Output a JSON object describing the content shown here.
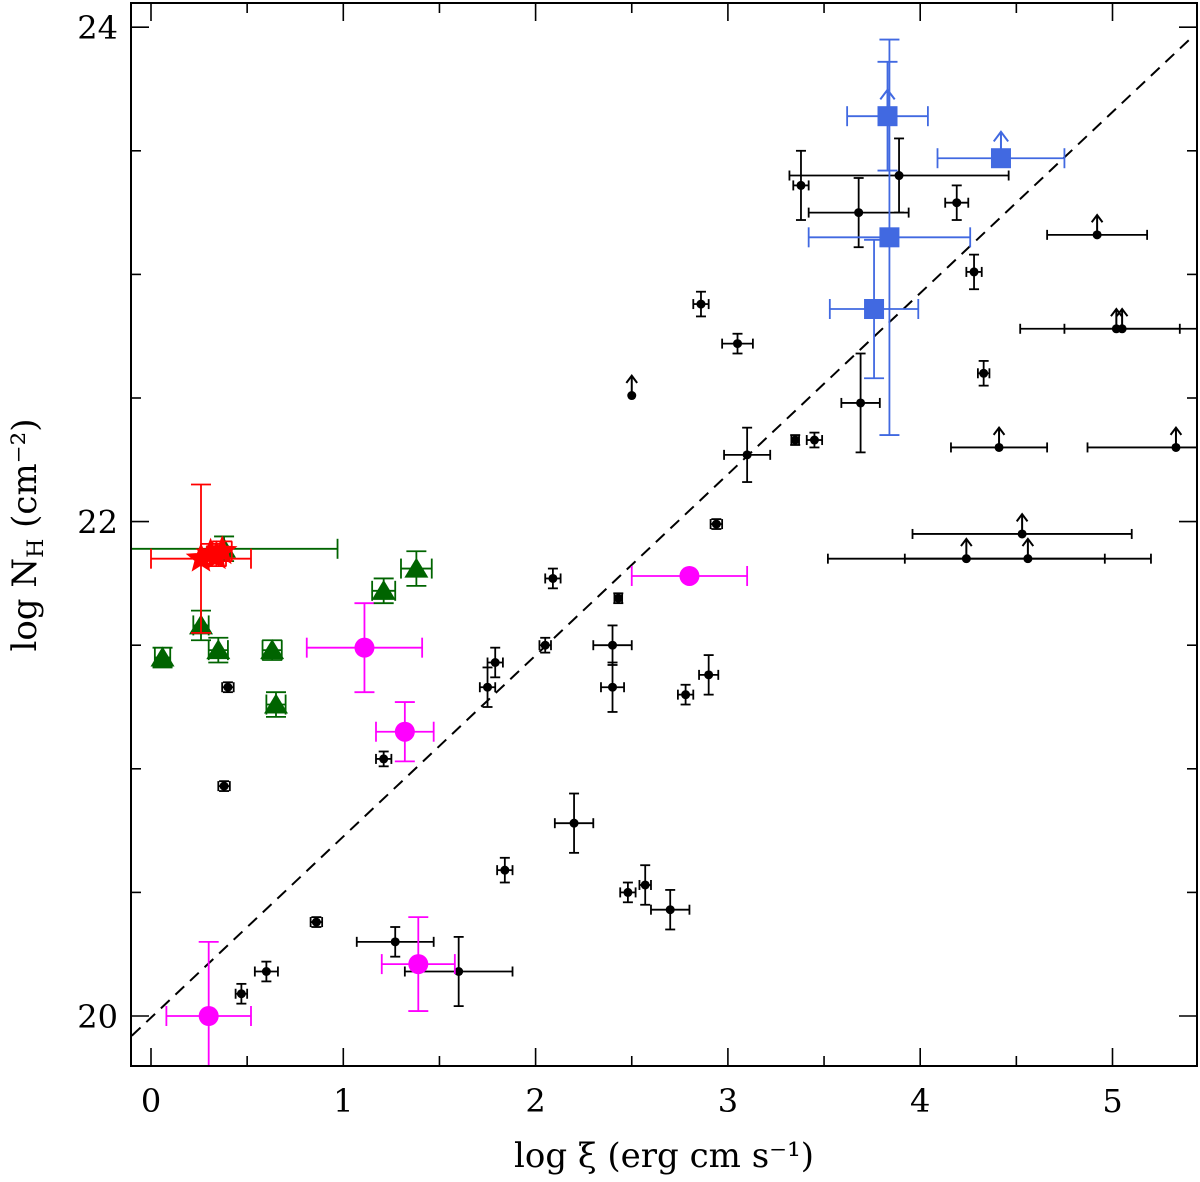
{
  "chart_data": {
    "type": "scatter",
    "xlabel": "log ξ (erg cm s⁻¹)",
    "ylabel": "log N_H (cm⁻²)",
    "xlim": [
      -0.1,
      5.4
    ],
    "ylim": [
      19.8,
      24.1
    ],
    "x_ticks": [
      "0",
      "1",
      "2",
      "3",
      "4",
      "5"
    ],
    "y_ticks": [
      "20",
      "22",
      "24"
    ],
    "grid": false,
    "legend": "none",
    "reference_line": {
      "style": "dashed",
      "color": "#000000",
      "points": [
        [
          -0.1,
          19.92
        ],
        [
          5.4,
          23.95
        ]
      ]
    },
    "series": [
      {
        "marker": "small-circle",
        "color": "#000000",
        "points": [
          {
            "x": 0.4,
            "y": 21.33,
            "xerr": 0.03,
            "yerr": 0.02
          },
          {
            "x": 0.38,
            "y": 20.93,
            "xerr": 0.03,
            "yerr": 0.02
          },
          {
            "x": 0.47,
            "y": 20.09,
            "xerr": 0.03,
            "yerr": 0.04
          },
          {
            "x": 0.6,
            "y": 20.18,
            "xerr": 0.06,
            "yerr": 0.04
          },
          {
            "x": 0.86,
            "y": 20.38,
            "xerr": 0.03,
            "yerr": 0.02
          },
          {
            "x": 1.21,
            "y": 21.04,
            "xerr": 0.04,
            "yerr": 0.03
          },
          {
            "x": 1.27,
            "y": 20.3,
            "xerr": 0.2,
            "yerr": 0.06
          },
          {
            "x": 1.6,
            "y": 20.18,
            "xerr": 0.28,
            "yerr": 0.14
          },
          {
            "x": 1.75,
            "y": 21.33,
            "xerr": 0.04,
            "yerr": 0.08
          },
          {
            "x": 1.79,
            "y": 21.43,
            "xerr": 0.04,
            "yerr": 0.06
          },
          {
            "x": 1.84,
            "y": 20.59,
            "xerr": 0.04,
            "yerr": 0.05
          },
          {
            "x": 2.05,
            "y": 21.5,
            "xerr": 0.03,
            "yerr": 0.03
          },
          {
            "x": 2.09,
            "y": 21.77,
            "xerr": 0.04,
            "yerr": 0.04
          },
          {
            "x": 2.2,
            "y": 20.78,
            "xerr": 0.1,
            "yerr": 0.12
          },
          {
            "x": 2.4,
            "y": 21.5,
            "xerr": 0.1,
            "yerr": 0.08
          },
          {
            "x": 2.4,
            "y": 21.33,
            "xerr": 0.06,
            "yerr": 0.1
          },
          {
            "x": 2.43,
            "y": 21.69,
            "xerr": 0.02,
            "yerr": 0.02
          },
          {
            "x": 2.48,
            "y": 20.5,
            "xerr": 0.04,
            "yerr": 0.04
          },
          {
            "x": 2.57,
            "y": 20.53,
            "xerr": 0.03,
            "yerr": 0.08
          },
          {
            "x": 2.7,
            "y": 20.43,
            "xerr": 0.1,
            "yerr": 0.08
          },
          {
            "x": 2.78,
            "y": 21.3,
            "xerr": 0.04,
            "yerr": 0.04
          },
          {
            "x": 2.86,
            "y": 22.88,
            "xerr": 0.04,
            "yerr": 0.05
          },
          {
            "x": 2.9,
            "y": 21.38,
            "xerr": 0.05,
            "yerr": 0.08
          },
          {
            "x": 2.94,
            "y": 21.99,
            "xerr": 0.03,
            "yerr": 0.02
          },
          {
            "x": 3.05,
            "y": 22.72,
            "xerr": 0.08,
            "yerr": 0.04
          },
          {
            "x": 3.1,
            "y": 22.27,
            "xerr": 0.12,
            "yerr": 0.11
          },
          {
            "x": 3.35,
            "y": 22.33,
            "xerr": 0.02,
            "yerr": 0.02
          },
          {
            "x": 3.38,
            "y": 23.36,
            "xerr": 0.04,
            "yerr": 0.14
          },
          {
            "x": 3.45,
            "y": 22.33,
            "xerr": 0.04,
            "yerr": 0.03
          },
          {
            "x": 3.68,
            "y": 23.25,
            "xerr": 0.26,
            "yerr": 0.14
          },
          {
            "x": 3.69,
            "y": 22.48,
            "xerr": 0.1,
            "yerr": 0.2
          },
          {
            "x": 3.89,
            "y": 23.4,
            "xerr": 0.57,
            "yerr": 0.15
          },
          {
            "x": 4.19,
            "y": 23.29,
            "xerr": 0.06,
            "yerr": 0.07
          },
          {
            "x": 4.28,
            "y": 23.01,
            "xerr": 0.04,
            "yerr": 0.07
          },
          {
            "x": 4.33,
            "y": 22.6,
            "xerr": 0.03,
            "yerr": 0.05
          }
        ]
      },
      {
        "marker": "small-circle-lower-limit",
        "color": "#000000",
        "points": [
          {
            "x": 2.5,
            "y": 22.51,
            "xerr": 0,
            "yerr": 0
          },
          {
            "x": 4.41,
            "y": 22.3,
            "xerr": 0.25,
            "yerr": 0
          },
          {
            "x": 4.24,
            "y": 21.85,
            "xerr": 0.72,
            "yerr": 0
          },
          {
            "x": 4.53,
            "y": 21.95,
            "xerr": 0.57,
            "yerr": 0
          },
          {
            "x": 4.56,
            "y": 21.85,
            "xerr": 0.64,
            "yerr": 0
          },
          {
            "x": 4.92,
            "y": 23.16,
            "xerr": 0.26,
            "yerr": 0
          },
          {
            "x": 5.02,
            "y": 22.78,
            "xerr": 0.5,
            "yerr": 0
          },
          {
            "x": 5.05,
            "y": 22.78,
            "xerr": 0.3,
            "yerr": 0
          },
          {
            "x": 5.33,
            "y": 22.3,
            "xerr": 0.46,
            "yerr": 0
          }
        ]
      },
      {
        "marker": "square",
        "color": "#4169e1",
        "points": [
          {
            "x": 3.76,
            "y": 22.86,
            "xerr": 0.23,
            "yerr": 0.28
          },
          {
            "x": 3.84,
            "y": 23.15,
            "xerr": 0.42,
            "yerr": 0.8
          },
          {
            "x": 3.83,
            "y": 23.64,
            "xerr": 0.21,
            "yerr": 0.22,
            "lower_limit": true
          },
          {
            "x": 4.42,
            "y": 23.47,
            "xerr": 0.33,
            "yerr": 0,
            "lower_limit": true
          }
        ]
      },
      {
        "marker": "circle",
        "color": "#ff00ff",
        "points": [
          {
            "x": 0.3,
            "y": 20.0,
            "xerr": 0.22,
            "yerr": 0.3
          },
          {
            "x": 1.11,
            "y": 21.49,
            "xerr": 0.3,
            "yerr": 0.18
          },
          {
            "x": 1.32,
            "y": 21.15,
            "xerr": 0.15,
            "yerr": 0.12
          },
          {
            "x": 1.39,
            "y": 20.21,
            "xerr": 0.19,
            "yerr": 0.19
          },
          {
            "x": 2.8,
            "y": 21.78,
            "xerr": 0.3,
            "yerr": 0
          }
        ]
      },
      {
        "marker": "triangle",
        "color": "#006400",
        "points": [
          {
            "x": 0.06,
            "y": 21.45,
            "xerr": 0.04,
            "yerr": 0.04
          },
          {
            "x": 0.26,
            "y": 21.58,
            "xerr": 0.04,
            "yerr": 0.06
          },
          {
            "x": 0.35,
            "y": 21.48,
            "xerr": 0.05,
            "yerr": 0.05
          },
          {
            "x": 0.63,
            "y": 21.48,
            "xerr": 0.05,
            "yerr": 0.04
          },
          {
            "x": 0.65,
            "y": 21.26,
            "xerr": 0.05,
            "yerr": 0.05
          },
          {
            "x": 1.21,
            "y": 21.72,
            "xerr": 0.06,
            "yerr": 0.05
          },
          {
            "x": 1.38,
            "y": 21.81,
            "xerr": 0.08,
            "yerr": 0.07
          },
          {
            "x": 0.38,
            "y": 21.89,
            "xerr": 0.59,
            "yerr": 0.05
          }
        ]
      },
      {
        "marker": "star",
        "color": "#ff0000",
        "points": [
          {
            "x": 0.26,
            "y": 21.85,
            "xerr": 0.26,
            "yerr": 0.3
          },
          {
            "x": 0.31,
            "y": 21.87,
            "xerr": 0.05,
            "yerr": 0.04
          },
          {
            "x": 0.34,
            "y": 21.86,
            "xerr": 0.05,
            "yerr": 0.04
          },
          {
            "x": 0.37,
            "y": 21.88,
            "xerr": 0.05,
            "yerr": 0.04
          }
        ]
      }
    ]
  }
}
